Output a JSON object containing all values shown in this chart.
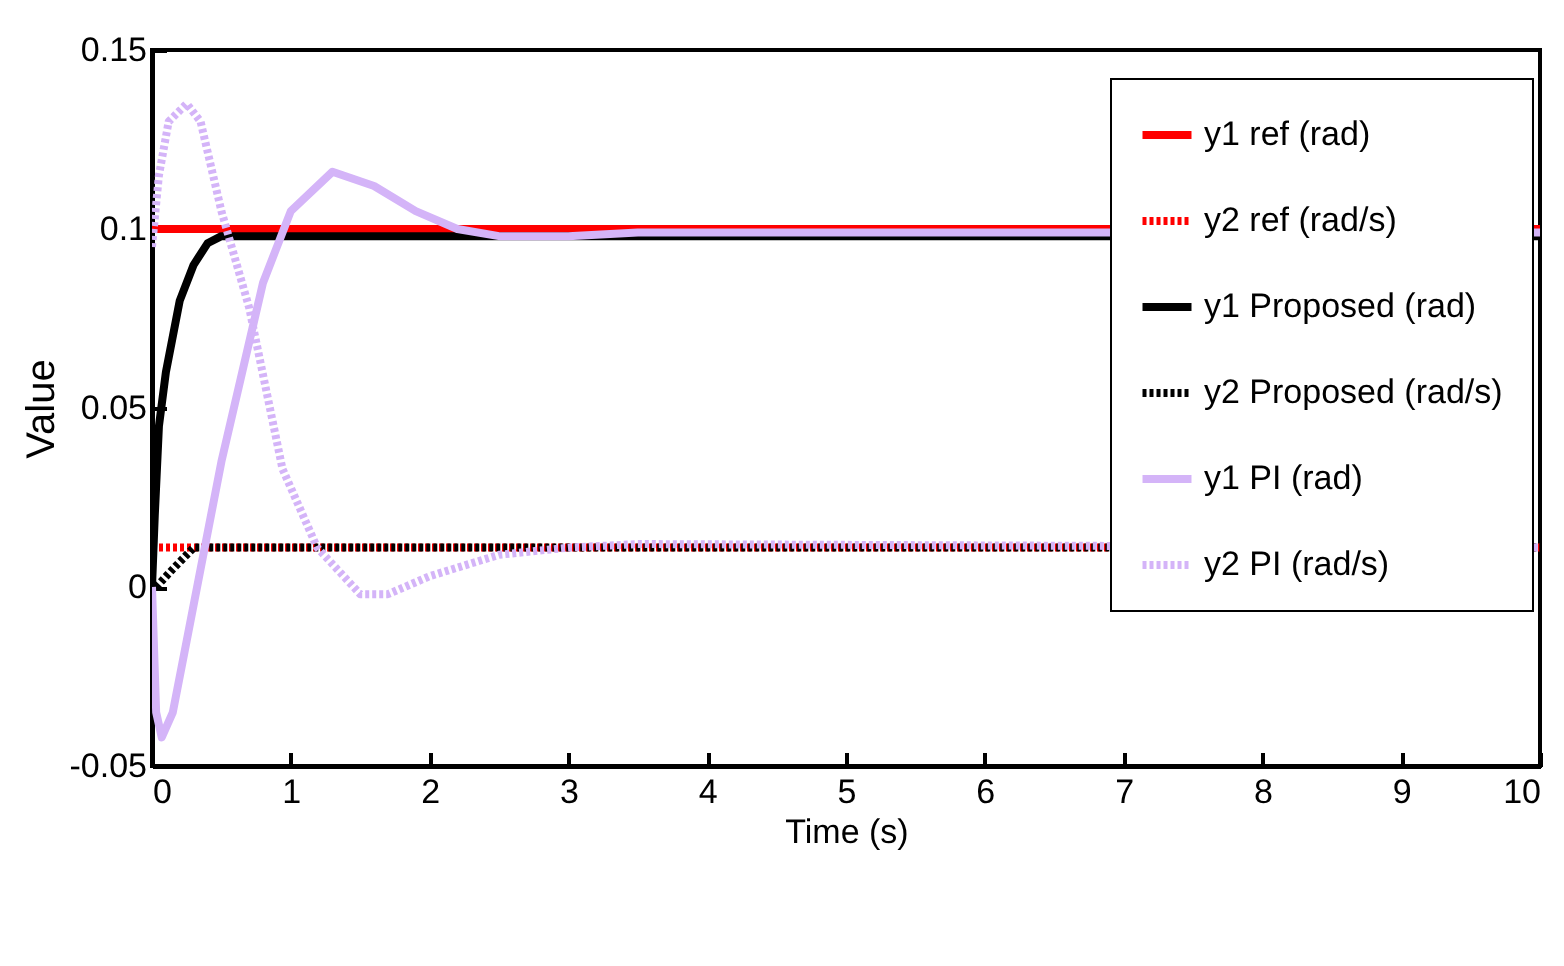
{
  "chart_data": {
    "type": "line",
    "xlabel": "Time (s)",
    "ylabel": "Value",
    "xlim": [
      0,
      10
    ],
    "xticks": [
      0,
      1,
      2,
      3,
      4,
      5,
      6,
      7,
      8,
      9,
      10
    ],
    "ylim": [
      -0.05,
      0.15
    ],
    "yticks": [
      -0.05,
      0,
      0.05,
      0.1,
      0.15
    ],
    "grid": false,
    "legend": "top right",
    "marker": "none",
    "series": [
      {
        "name": "y1 ref (rad)",
        "color": "#ff0000",
        "line_style": "solid",
        "x": [
          0,
          10
        ],
        "values": [
          0.1,
          0.1
        ]
      },
      {
        "name": "y2 ref (rad/s)",
        "color": "#ff0000",
        "line_style": "dotted",
        "x": [
          0,
          10
        ],
        "values": [
          0.011,
          0.011
        ]
      },
      {
        "name": "y1 Proposed (rad)",
        "color": "#000000",
        "line_style": "solid",
        "x": [
          0,
          0.02,
          0.05,
          0.1,
          0.2,
          0.3,
          0.4,
          0.5,
          10
        ],
        "values": [
          0,
          0.02,
          0.045,
          0.06,
          0.08,
          0.09,
          0.096,
          0.098,
          0.098
        ]
      },
      {
        "name": "y2 Proposed (rad/s)",
        "color": "#000000",
        "line_style": "dotted",
        "x": [
          0.03,
          0.15,
          0.3,
          10
        ],
        "values": [
          0,
          0.005,
          0.011,
          0.011
        ]
      },
      {
        "name": "y1 PI (rad)",
        "color": "#d4b4f8",
        "line_style": "solid",
        "x": [
          0,
          0.03,
          0.07,
          0.15,
          0.25,
          0.35,
          0.5,
          0.65,
          0.8,
          1.0,
          1.3,
          1.6,
          1.9,
          2.2,
          2.5,
          3,
          3.5,
          10
        ],
        "values": [
          0,
          -0.035,
          -0.042,
          -0.035,
          -0.015,
          0.005,
          0.035,
          0.06,
          0.085,
          0.105,
          0.116,
          0.112,
          0.105,
          0.1,
          0.098,
          0.098,
          0.099,
          0.099
        ]
      },
      {
        "name": "y2 PI (rad/s)",
        "color": "#d4b4f8",
        "line_style": "dotted",
        "x": [
          0,
          0.05,
          0.12,
          0.25,
          0.35,
          0.5,
          0.7,
          0.94,
          1.19,
          1.5,
          1.7,
          2.0,
          2.5,
          3,
          3.5,
          10
        ],
        "values": [
          0.095,
          0.115,
          0.13,
          0.135,
          0.13,
          0.105,
          0.078,
          0.033,
          0.011,
          -0.002,
          -0.002,
          0.003,
          0.009,
          0.011,
          0.012,
          0.011
        ]
      }
    ]
  }
}
